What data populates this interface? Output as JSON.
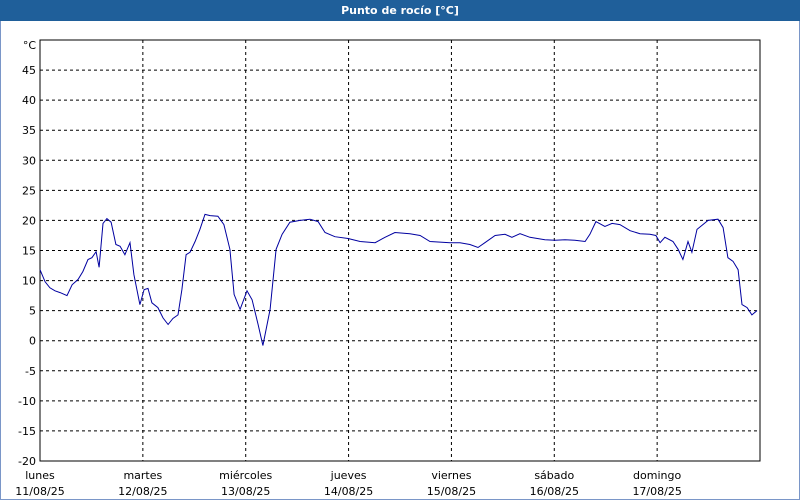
{
  "chart_data": {
    "type": "line",
    "title": "Punto de rocío [°C]",
    "unit": "°C",
    "xlim": [
      0,
      168
    ],
    "ylim": [
      -20,
      50
    ],
    "xticks": [
      {
        "value": 0,
        "label": "lunes",
        "date": "11/08/25"
      },
      {
        "value": 24,
        "label": "martes",
        "date": "12/08/25"
      },
      {
        "value": 48,
        "label": "miércoles",
        "date": "13/08/25"
      },
      {
        "value": 72,
        "label": "jueves",
        "date": "14/08/25"
      },
      {
        "value": 96,
        "label": "viernes",
        "date": "15/08/25"
      },
      {
        "value": 120,
        "label": "sábado",
        "date": "16/08/25"
      },
      {
        "value": 144,
        "label": "domingo",
        "date": "17/08/25"
      }
    ],
    "yticks": [
      -20,
      -15,
      -10,
      -5,
      0,
      5,
      10,
      15,
      20,
      25,
      30,
      35,
      40,
      45
    ],
    "grid": true,
    "color": "#0000a0",
    "x": [
      0,
      1.2,
      2.3,
      3.5,
      4.7,
      6.3,
      7.5,
      8.9,
      10,
      11.2,
      12.1,
      13.1,
      13.8,
      14.7,
      15.6,
      16.6,
      17.7,
      18.7,
      19.8,
      21,
      21.9,
      23.3,
      24.3,
      25.2,
      26.1,
      27.5,
      28.7,
      29.9,
      31,
      32.2,
      33.1,
      34.1,
      35,
      36.2,
      37.3,
      38.5,
      39.7,
      41.5,
      42.9,
      44.3,
      45.3,
      46.7,
      48.3,
      49.5,
      50.9,
      52,
      53.7,
      55.1,
      56.5,
      58.3,
      60.7,
      63,
      64.9,
      66.5,
      68.8,
      71.9,
      74.7,
      78.2,
      80.5,
      82.8,
      86.3,
      88.7,
      91,
      95.7,
      98,
      100.3,
      102.2,
      103.8,
      106.2,
      108.5,
      110.1,
      112,
      114.3,
      117.8,
      120.2,
      122.5,
      124.8,
      127.2,
      128.3,
      129.7,
      131.8,
      133.5,
      135.3,
      137.7,
      140,
      142.3,
      143.7,
      144.7,
      145.8,
      147.7,
      148.9,
      150,
      151.2,
      152.1,
      153.3,
      154.5,
      155.9,
      158.2,
      159.4,
      160.5,
      161.7,
      162.9,
      163.8,
      165,
      166.1,
      167.3
    ],
    "values": [
      11.8,
      9.8,
      8.8,
      8.3,
      8,
      7.5,
      9.3,
      10.2,
      11.5,
      13.5,
      13.8,
      14.8,
      12.2,
      19.5,
      20.3,
      19.7,
      16,
      15.7,
      14.3,
      16.3,
      11,
      6,
      8.5,
      8.7,
      6.3,
      5.5,
      3.8,
      2.7,
      3.7,
      4.3,
      8.5,
      14.3,
      14.7,
      16.5,
      18.5,
      21,
      20.8,
      20.7,
      19.3,
      15.2,
      7.7,
      5.2,
      8.3,
      6.8,
      2.7,
      -0.8,
      5.2,
      15.2,
      17.7,
      19.7,
      20,
      20.2,
      19.8,
      18,
      17.3,
      17,
      16.5,
      16.3,
      17.2,
      18,
      17.8,
      17.5,
      16.5,
      16.3,
      16.3,
      16,
      15.5,
      16.3,
      17.5,
      17.7,
      17.2,
      17.8,
      17.2,
      16.8,
      16.7,
      16.8,
      16.7,
      16.5,
      17.7,
      19.8,
      19,
      19.5,
      19.3,
      18.3,
      17.8,
      17.7,
      17.5,
      16.3,
      17.2,
      16.5,
      15.2,
      13.5,
      16.5,
      14.7,
      18.5,
      19.2,
      20,
      20.2,
      18.8,
      13.8,
      13.2,
      11.8,
      6,
      5.5,
      4.3,
      5
    ]
  }
}
